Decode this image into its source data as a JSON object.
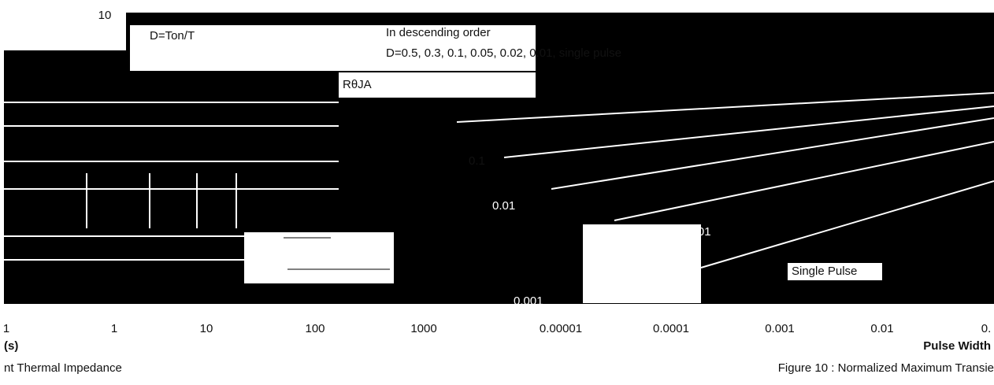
{
  "top_tick": "10",
  "legend": {
    "duty": "D=Ton/T",
    "order": "In descending order",
    "values": "D=0.5, 0.3, 0.1, 0.05, 0.02, 0.01, single pulse"
  },
  "resistance": "RθJA",
  "y_ticks": [
    "0.1",
    "0.01",
    "0.001",
    "0.001"
  ],
  "single_pulse": "Single Pulse",
  "x_labels": [
    "1",
    "1",
    "10",
    "100",
    "1000",
    "0.00001",
    "0.0001",
    "0.001",
    "0.01",
    "0."
  ],
  "x_unit": "(s)",
  "x_title": "Pulse Width",
  "caption_left": "nt Thermal Impedance",
  "caption_right": "Figure 10 : Normalized Maximum Transie"
}
